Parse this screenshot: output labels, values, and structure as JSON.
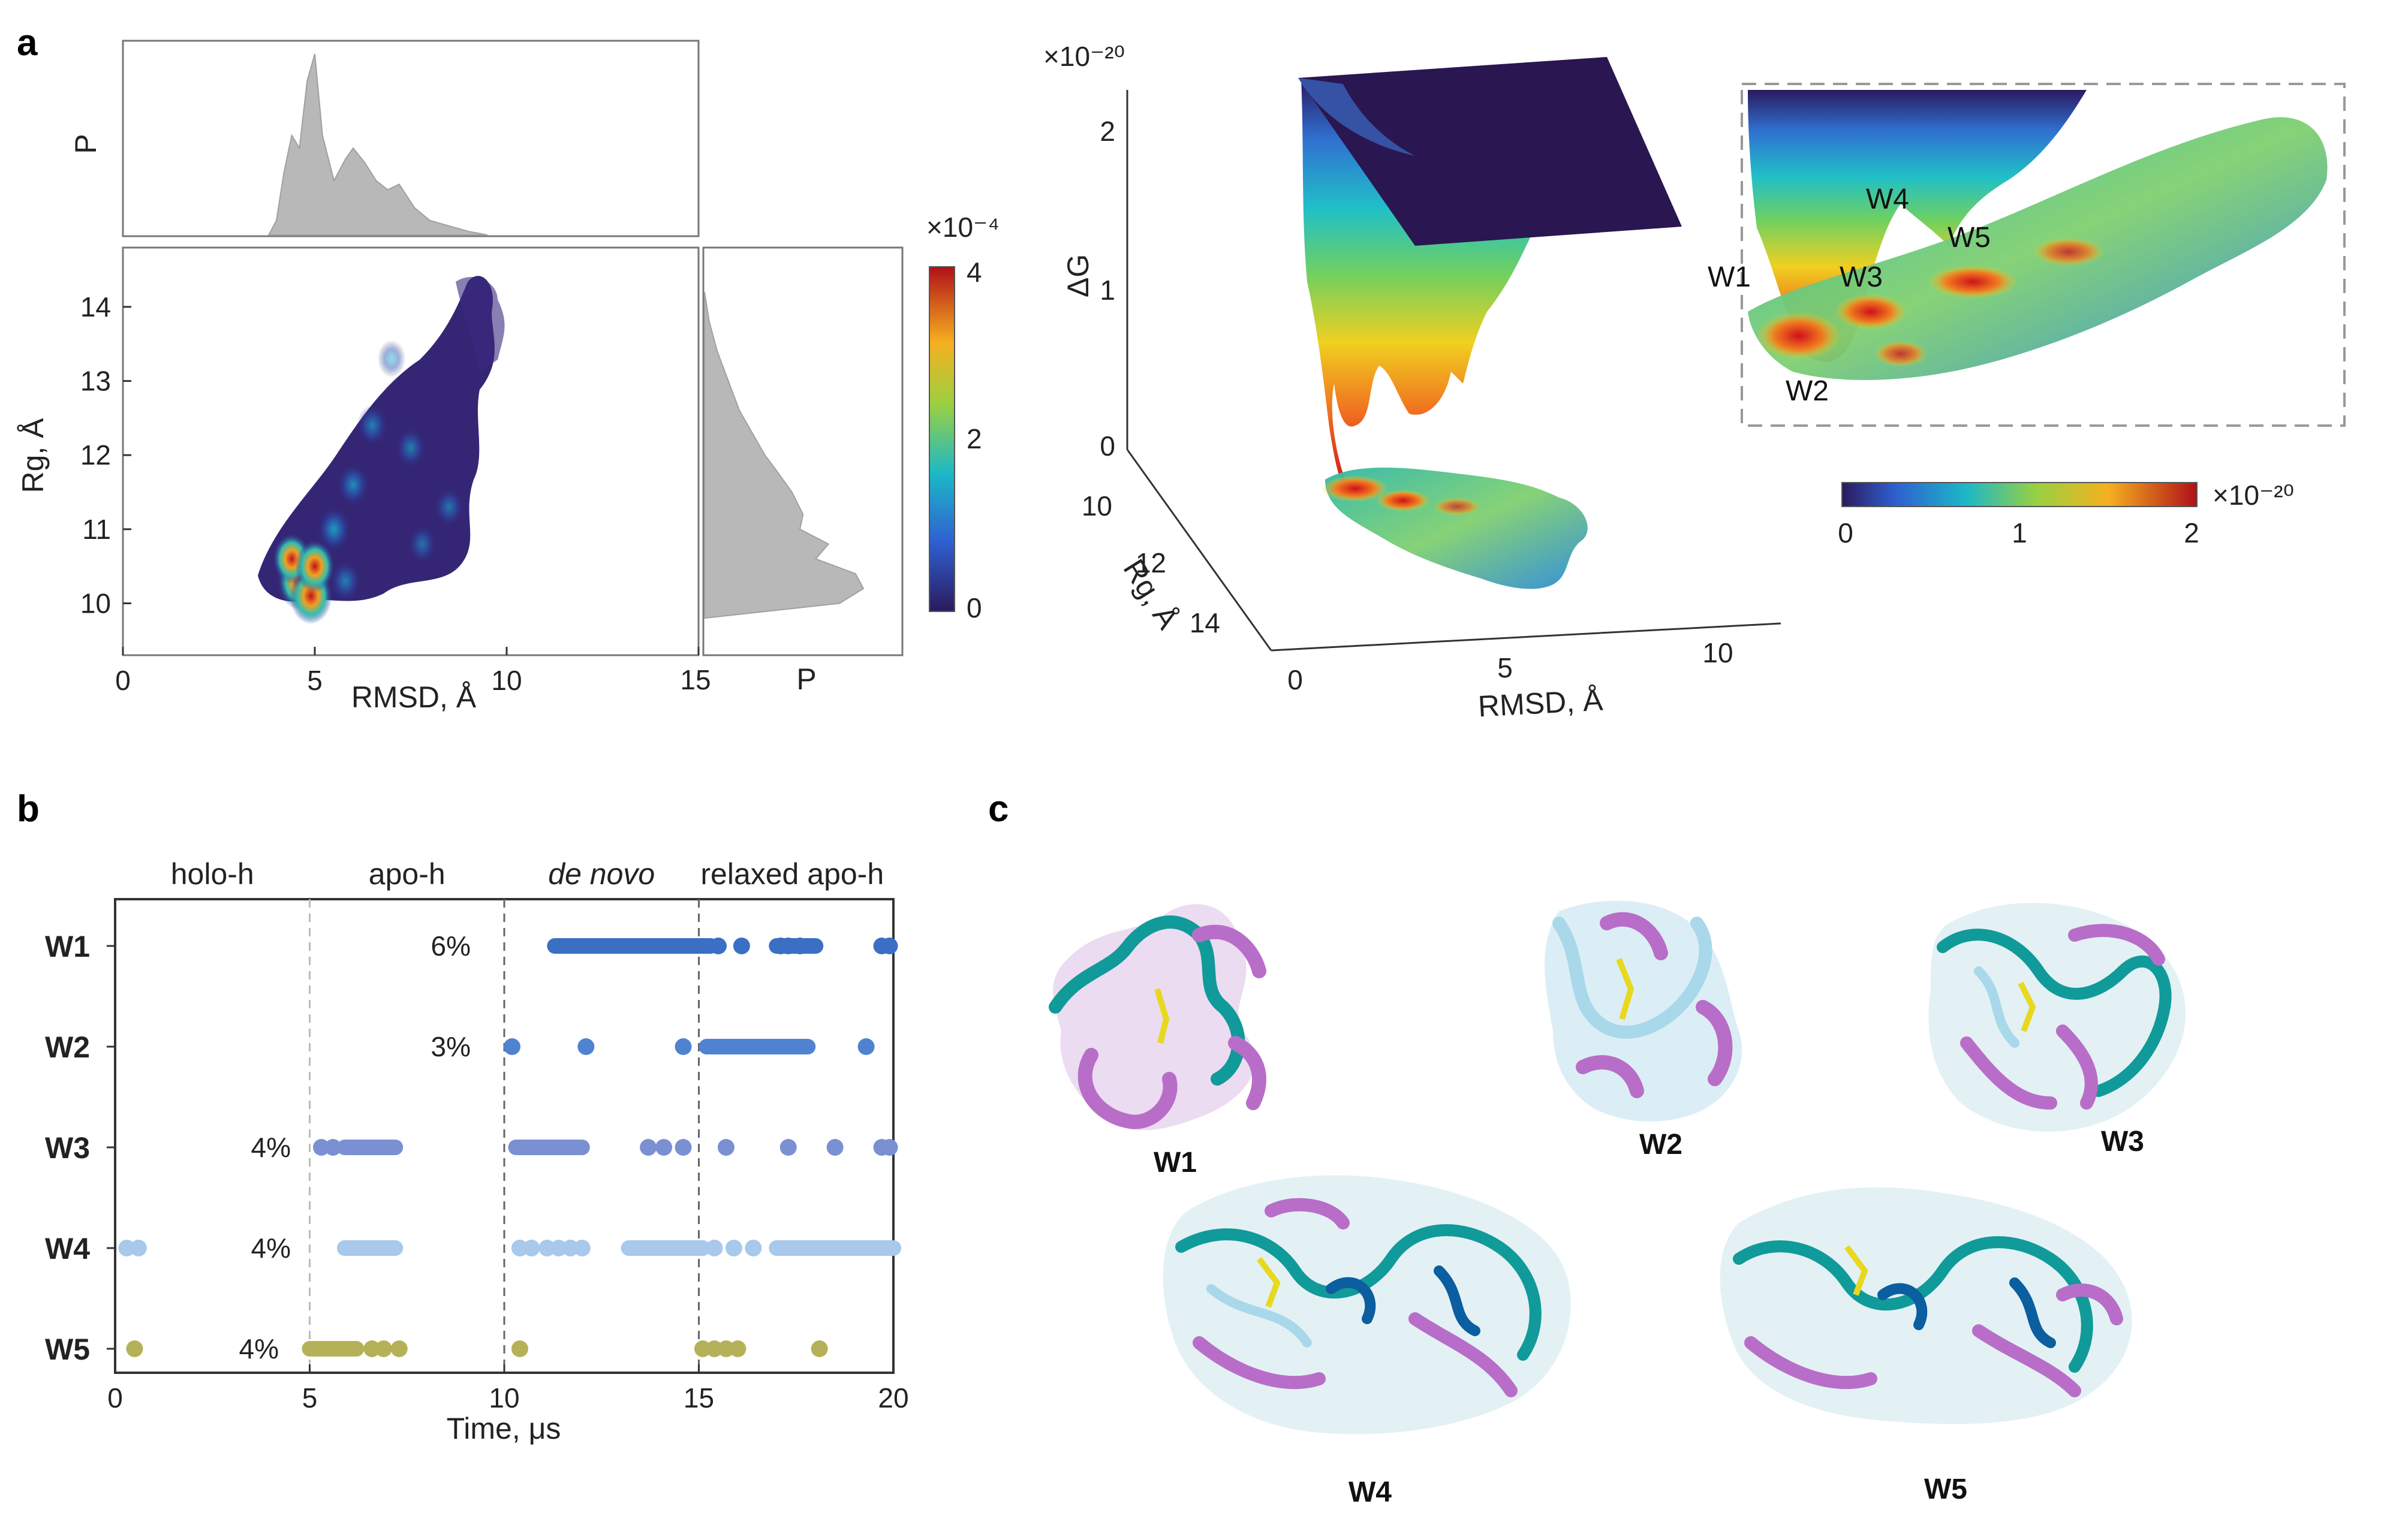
{
  "panel_labels": {
    "a": "a",
    "b": "b",
    "c": "c"
  },
  "chart_data": [
    {
      "id": "a_density",
      "type": "heatmap",
      "xlabel": "RMSD, Å",
      "ylabel": "Rg, Å",
      "xticks": [
        "0",
        "5",
        "10",
        "15"
      ],
      "yticks": [
        "10",
        "11",
        "12",
        "13",
        "14"
      ],
      "xlim": [
        0,
        15
      ],
      "ylim": [
        9.3,
        14.8
      ],
      "top_marginal_label": "P",
      "right_marginal_label": "P",
      "colorbar": {
        "exponent": "×10⁻⁴",
        "ticks": [
          "0",
          "2",
          "4"
        ],
        "range": [
          0,
          4
        ]
      },
      "top_marginal": {
        "x": [
          3.8,
          4.0,
          4.2,
          4.4,
          4.6,
          4.8,
          5.0,
          5.2,
          5.5,
          5.8,
          6.0,
          6.3,
          6.6,
          6.9,
          7.2,
          7.6,
          8.0,
          8.5,
          9.0,
          9.5
        ],
        "p": [
          0.0,
          0.08,
          0.35,
          0.55,
          0.48,
          0.85,
          1.0,
          0.55,
          0.3,
          0.42,
          0.48,
          0.4,
          0.3,
          0.25,
          0.28,
          0.15,
          0.08,
          0.05,
          0.02,
          0.0
        ]
      },
      "right_marginal": {
        "rg": [
          9.8,
          10.0,
          10.2,
          10.4,
          10.6,
          10.8,
          11.0,
          11.2,
          11.5,
          11.8,
          12.0,
          12.3,
          12.6,
          13.0,
          13.4,
          13.8,
          14.2
        ],
        "p": [
          0.0,
          0.85,
          1.0,
          0.95,
          0.7,
          0.78,
          0.6,
          0.62,
          0.55,
          0.45,
          0.38,
          0.3,
          0.22,
          0.15,
          0.08,
          0.03,
          0.0
        ]
      },
      "density_blobs": [
        {
          "rmsd": 4.6,
          "rg": 10.3,
          "level": 4.0
        },
        {
          "rmsd": 4.9,
          "rg": 10.1,
          "level": 3.8
        },
        {
          "rmsd": 4.4,
          "rg": 10.6,
          "level": 2.6
        },
        {
          "rmsd": 5.0,
          "rg": 10.5,
          "level": 3.0
        },
        {
          "rmsd": 5.5,
          "rg": 11.0,
          "level": 1.6
        },
        {
          "rmsd": 6.0,
          "rg": 11.6,
          "level": 1.2
        },
        {
          "rmsd": 6.5,
          "rg": 12.4,
          "level": 0.9
        },
        {
          "rmsd": 7.5,
          "rg": 12.1,
          "level": 0.8
        },
        {
          "rmsd": 8.5,
          "rg": 11.3,
          "level": 0.6
        },
        {
          "rmsd": 7.8,
          "rg": 10.8,
          "level": 0.5
        },
        {
          "rmsd": 5.8,
          "rg": 10.3,
          "level": 0.9
        },
        {
          "rmsd": 7.0,
          "rg": 13.3,
          "level": 0.3
        }
      ]
    },
    {
      "id": "a_landscape",
      "type": "area",
      "title_exponent": "×10⁻²⁰",
      "zlabel": "ΔG",
      "zticks": [
        "0",
        "1",
        "2"
      ],
      "rg_label": "Rg, Å",
      "rg_ticks": [
        "10",
        "12",
        "14"
      ],
      "rmsd_label": "RMSD, Å",
      "rmsd_ticks": [
        "0",
        "5",
        "10"
      ],
      "colorbar": {
        "exponent": "×10⁻²⁰",
        "ticks": [
          "0",
          "1",
          "2"
        ],
        "range": [
          0,
          2
        ]
      },
      "wells": [
        {
          "name": "W1",
          "rmsd": 4.6,
          "rg": 10.3
        },
        {
          "name": "W2",
          "rmsd": 4.9,
          "rg": 10.1
        },
        {
          "name": "W3",
          "rmsd": 5.5,
          "rg": 10.5
        },
        {
          "name": "W4",
          "rmsd": 6.3,
          "rg": 11.3
        },
        {
          "name": "W5",
          "rmsd": 7.2,
          "rg": 11.2
        }
      ]
    },
    {
      "id": "b_timeline",
      "type": "scatter",
      "xlabel": "Time, μs",
      "xticks": [
        "0",
        "5",
        "10",
        "15",
        "20"
      ],
      "xlim": [
        0,
        20
      ],
      "segments": [
        {
          "label": "holo-h",
          "italic": false,
          "x": 2.5
        },
        {
          "label": "apo-h",
          "italic": false,
          "x": 7.5
        },
        {
          "label": "de novo",
          "italic": true,
          "x": 12.5
        },
        {
          "label": "relaxed apo-h",
          "italic": false,
          "x": 17.4
        }
      ],
      "series": [
        {
          "name": "W1",
          "percent": "6%",
          "color": "#3a6fc4",
          "intervals": [
            [
              11.3,
              15.3
            ]
          ],
          "points": [
            15.5,
            16.1,
            17.1,
            17.3,
            17.6,
            19.7,
            19.9
          ],
          "dense_tail": [
            [
              17.0,
              18.0
            ]
          ]
        },
        {
          "name": "W2",
          "percent": "3%",
          "color": "#4f82d0",
          "intervals": [
            [
              15.2,
              17.8
            ]
          ],
          "points": [
            10.2,
            12.1,
            14.6,
            19.3
          ],
          "dense_tail": []
        },
        {
          "name": "W3",
          "percent": "4%",
          "color": "#7b90d2",
          "intervals": [
            [
              5.9,
              7.2
            ],
            [
              10.3,
              12.0
            ]
          ],
          "points": [
            5.3,
            5.6,
            13.7,
            14.1,
            14.6,
            15.7,
            17.3,
            18.5,
            19.7,
            19.9
          ],
          "dense_tail": []
        },
        {
          "name": "W4",
          "percent": "4%",
          "color": "#a8c8ec",
          "intervals": [
            [
              5.9,
              7.2
            ],
            [
              13.2,
              15.1
            ],
            [
              17.0,
              20.0
            ]
          ],
          "points": [
            0.3,
            0.6,
            10.4,
            10.7,
            11.1,
            11.4,
            11.7,
            12.0,
            15.4,
            15.9,
            16.4
          ],
          "dense_tail": []
        },
        {
          "name": "W5",
          "percent": "4%",
          "color": "#b5b158",
          "intervals": [
            [
              5.0,
              6.2
            ]
          ],
          "points": [
            0.5,
            6.6,
            6.9,
            7.3,
            10.4,
            15.1,
            15.4,
            15.7,
            16.0,
            18.1
          ],
          "dense_tail": []
        }
      ]
    }
  ],
  "structures": {
    "W1": "W1",
    "W2": "W2",
    "W3": "W3",
    "W4": "W4",
    "W5": "W5"
  }
}
